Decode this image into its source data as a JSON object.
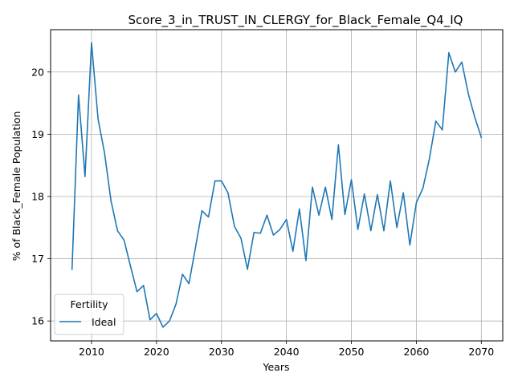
{
  "chart_data": {
    "type": "line",
    "title": "Score_3_in_TRUST_IN_CLERGY_for_Black_Female_Q4_IQ",
    "xlabel": "Years",
    "ylabel": "% of Black_Female Population",
    "xlim": [
      2003.7,
      2073.3
    ],
    "ylim": [
      15.68,
      20.68
    ],
    "xticks": [
      2010,
      2020,
      2030,
      2040,
      2050,
      2060,
      2070
    ],
    "yticks": [
      16,
      17,
      18,
      19,
      20
    ],
    "grid": true,
    "legend": {
      "title": "Fertility",
      "position": "lower-left"
    },
    "series": [
      {
        "name": "Ideal",
        "color": "#1f77b4",
        "x": [
          2007,
          2008,
          2009,
          2010,
          2011,
          2012,
          2013,
          2014,
          2015,
          2016,
          2017,
          2018,
          2019,
          2020,
          2021,
          2022,
          2023,
          2024,
          2025,
          2026,
          2027,
          2028,
          2029,
          2030,
          2031,
          2032,
          2033,
          2034,
          2035,
          2036,
          2037,
          2038,
          2039,
          2040,
          2041,
          2042,
          2043,
          2044,
          2045,
          2046,
          2047,
          2048,
          2049,
          2050,
          2051,
          2052,
          2053,
          2054,
          2055,
          2056,
          2057,
          2058,
          2059,
          2060,
          2061,
          2062,
          2063,
          2064,
          2065,
          2066,
          2067,
          2068,
          2069,
          2070
        ],
        "y": [
          16.83,
          19.63,
          18.32,
          20.47,
          19.25,
          18.7,
          17.93,
          17.45,
          17.3,
          16.88,
          16.47,
          16.57,
          16.02,
          16.12,
          15.9,
          16.0,
          16.27,
          16.75,
          16.6,
          17.18,
          17.77,
          17.67,
          18.25,
          18.25,
          18.06,
          17.52,
          17.33,
          16.83,
          17.42,
          17.41,
          17.7,
          17.38,
          17.47,
          17.63,
          17.12,
          17.8,
          16.97,
          18.15,
          17.7,
          18.15,
          17.63,
          18.83,
          17.71,
          18.27,
          17.47,
          18.04,
          17.45,
          18.03,
          17.45,
          18.25,
          17.5,
          18.06,
          17.22,
          17.9,
          18.13,
          18.6,
          19.21,
          19.07,
          20.31,
          20.0,
          20.16,
          19.65,
          19.27,
          18.95
        ]
      }
    ]
  }
}
